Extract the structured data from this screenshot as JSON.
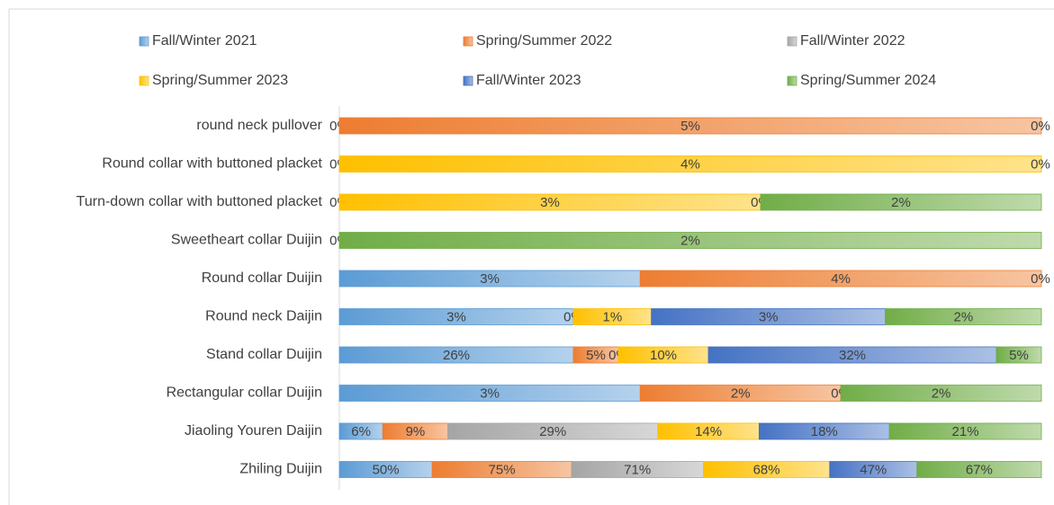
{
  "chart_data": {
    "type": "bar",
    "orientation": "horizontal",
    "stacked": "percent",
    "legend": "top",
    "categories": [
      "round neck pullover",
      "Round collar with buttoned placket",
      "Turn-down collar with buttoned placket",
      "Sweetheart collar Duijin",
      "Round collar Duijin",
      "Round neck Daijin",
      "Stand collar Duijin",
      "Rectangular collar Duijin",
      "Jiaoling Youren Daijin",
      "Zhiling Duijin"
    ],
    "series": [
      {
        "name": "Fall/Winter 2021",
        "color": "#5b9bd5",
        "values": [
          0,
          0,
          0,
          0,
          3,
          3,
          26,
          3,
          6,
          50
        ],
        "value_labels": [
          "0%",
          "0%",
          "0%",
          "0%",
          "3%",
          "3%",
          "26%",
          "3%",
          "6%",
          "50%"
        ]
      },
      {
        "name": "Spring/Summer 2022",
        "color": "#ed7d31",
        "values": [
          5,
          null,
          null,
          null,
          4,
          null,
          5,
          2,
          9,
          75
        ],
        "value_labels": [
          "5%",
          null,
          null,
          null,
          "4%",
          null,
          "5%",
          "2%",
          "9%",
          "75%"
        ]
      },
      {
        "name": "Fall/Winter 2022",
        "color": "#a5a5a5",
        "values": [
          null,
          null,
          null,
          null,
          null,
          0,
          0,
          null,
          29,
          71
        ],
        "value_labels": [
          null,
          null,
          null,
          null,
          null,
          "0%",
          "0%",
          null,
          "29%",
          "71%"
        ]
      },
      {
        "name": "Spring/Summer 2023",
        "color": "#ffc000",
        "values": [
          null,
          4,
          3,
          null,
          null,
          1,
          10,
          0,
          14,
          68
        ],
        "value_labels": [
          null,
          "4%",
          "3%",
          null,
          null,
          "1%",
          "10%",
          "0%",
          "14%",
          "68%"
        ]
      },
      {
        "name": "Fall/Winter 2023",
        "color": "#4472c4",
        "values": [
          null,
          null,
          0,
          null,
          null,
          3,
          32,
          null,
          18,
          47
        ],
        "value_labels": [
          null,
          null,
          "0%",
          null,
          null,
          "3%",
          "32%",
          null,
          "18%",
          "47%"
        ]
      },
      {
        "name": "Spring/Summer 2024",
        "color": "#70ad47",
        "values": [
          0,
          0,
          2,
          2,
          0,
          2,
          5,
          2,
          21,
          67
        ],
        "value_labels": [
          "0%",
          "0%",
          "2%",
          "2%",
          "0%",
          "2%",
          "5%",
          "2%",
          "21%",
          "67%"
        ]
      }
    ]
  }
}
